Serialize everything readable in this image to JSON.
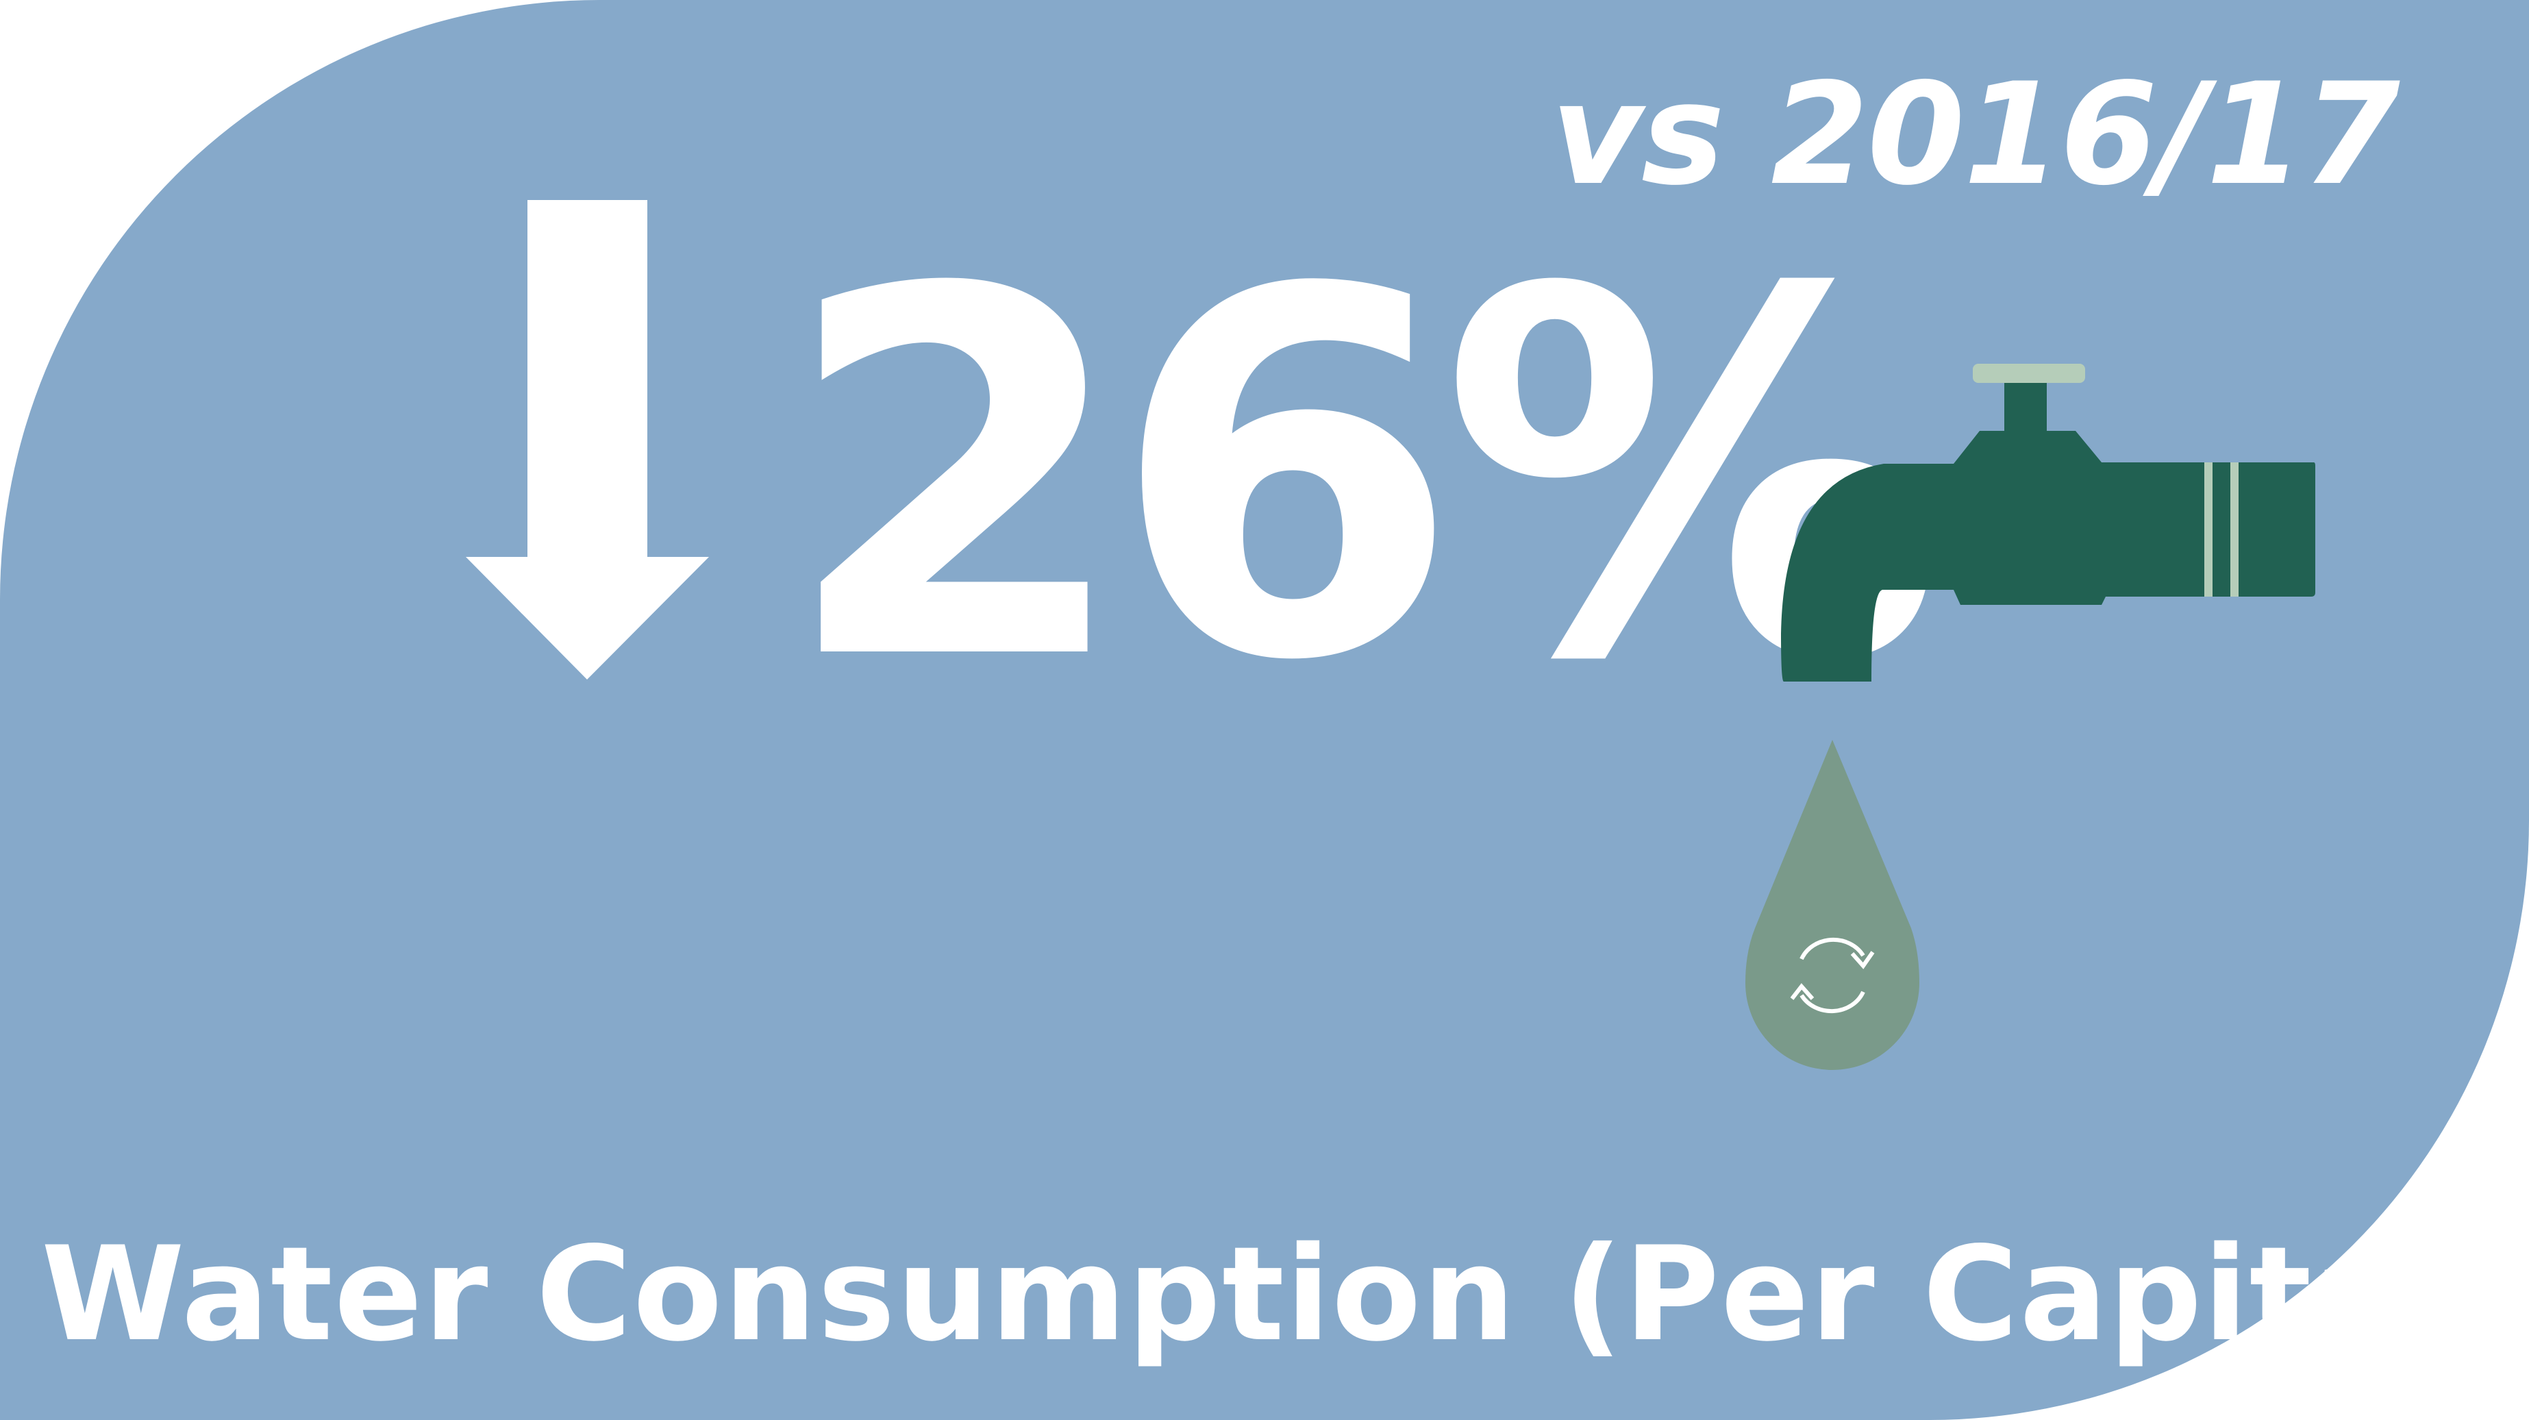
{
  "comparison_label": "vs 2016/17",
  "headline": {
    "direction": "down",
    "value_text": "26%",
    "value": 26,
    "unit": "%"
  },
  "caption": "Water Consumption (Per Capita)",
  "icons": {
    "arrow": "arrow-down-icon",
    "tap": "water-tap-icon",
    "drop": "water-drop-icon",
    "refresh": "recycle-arrows-icon"
  },
  "colors": {
    "background": "#86a9ca",
    "text": "#ffffff",
    "tap": "#216152",
    "tap_accent": "#b5cdb9",
    "drop": "#7a9a8a"
  }
}
